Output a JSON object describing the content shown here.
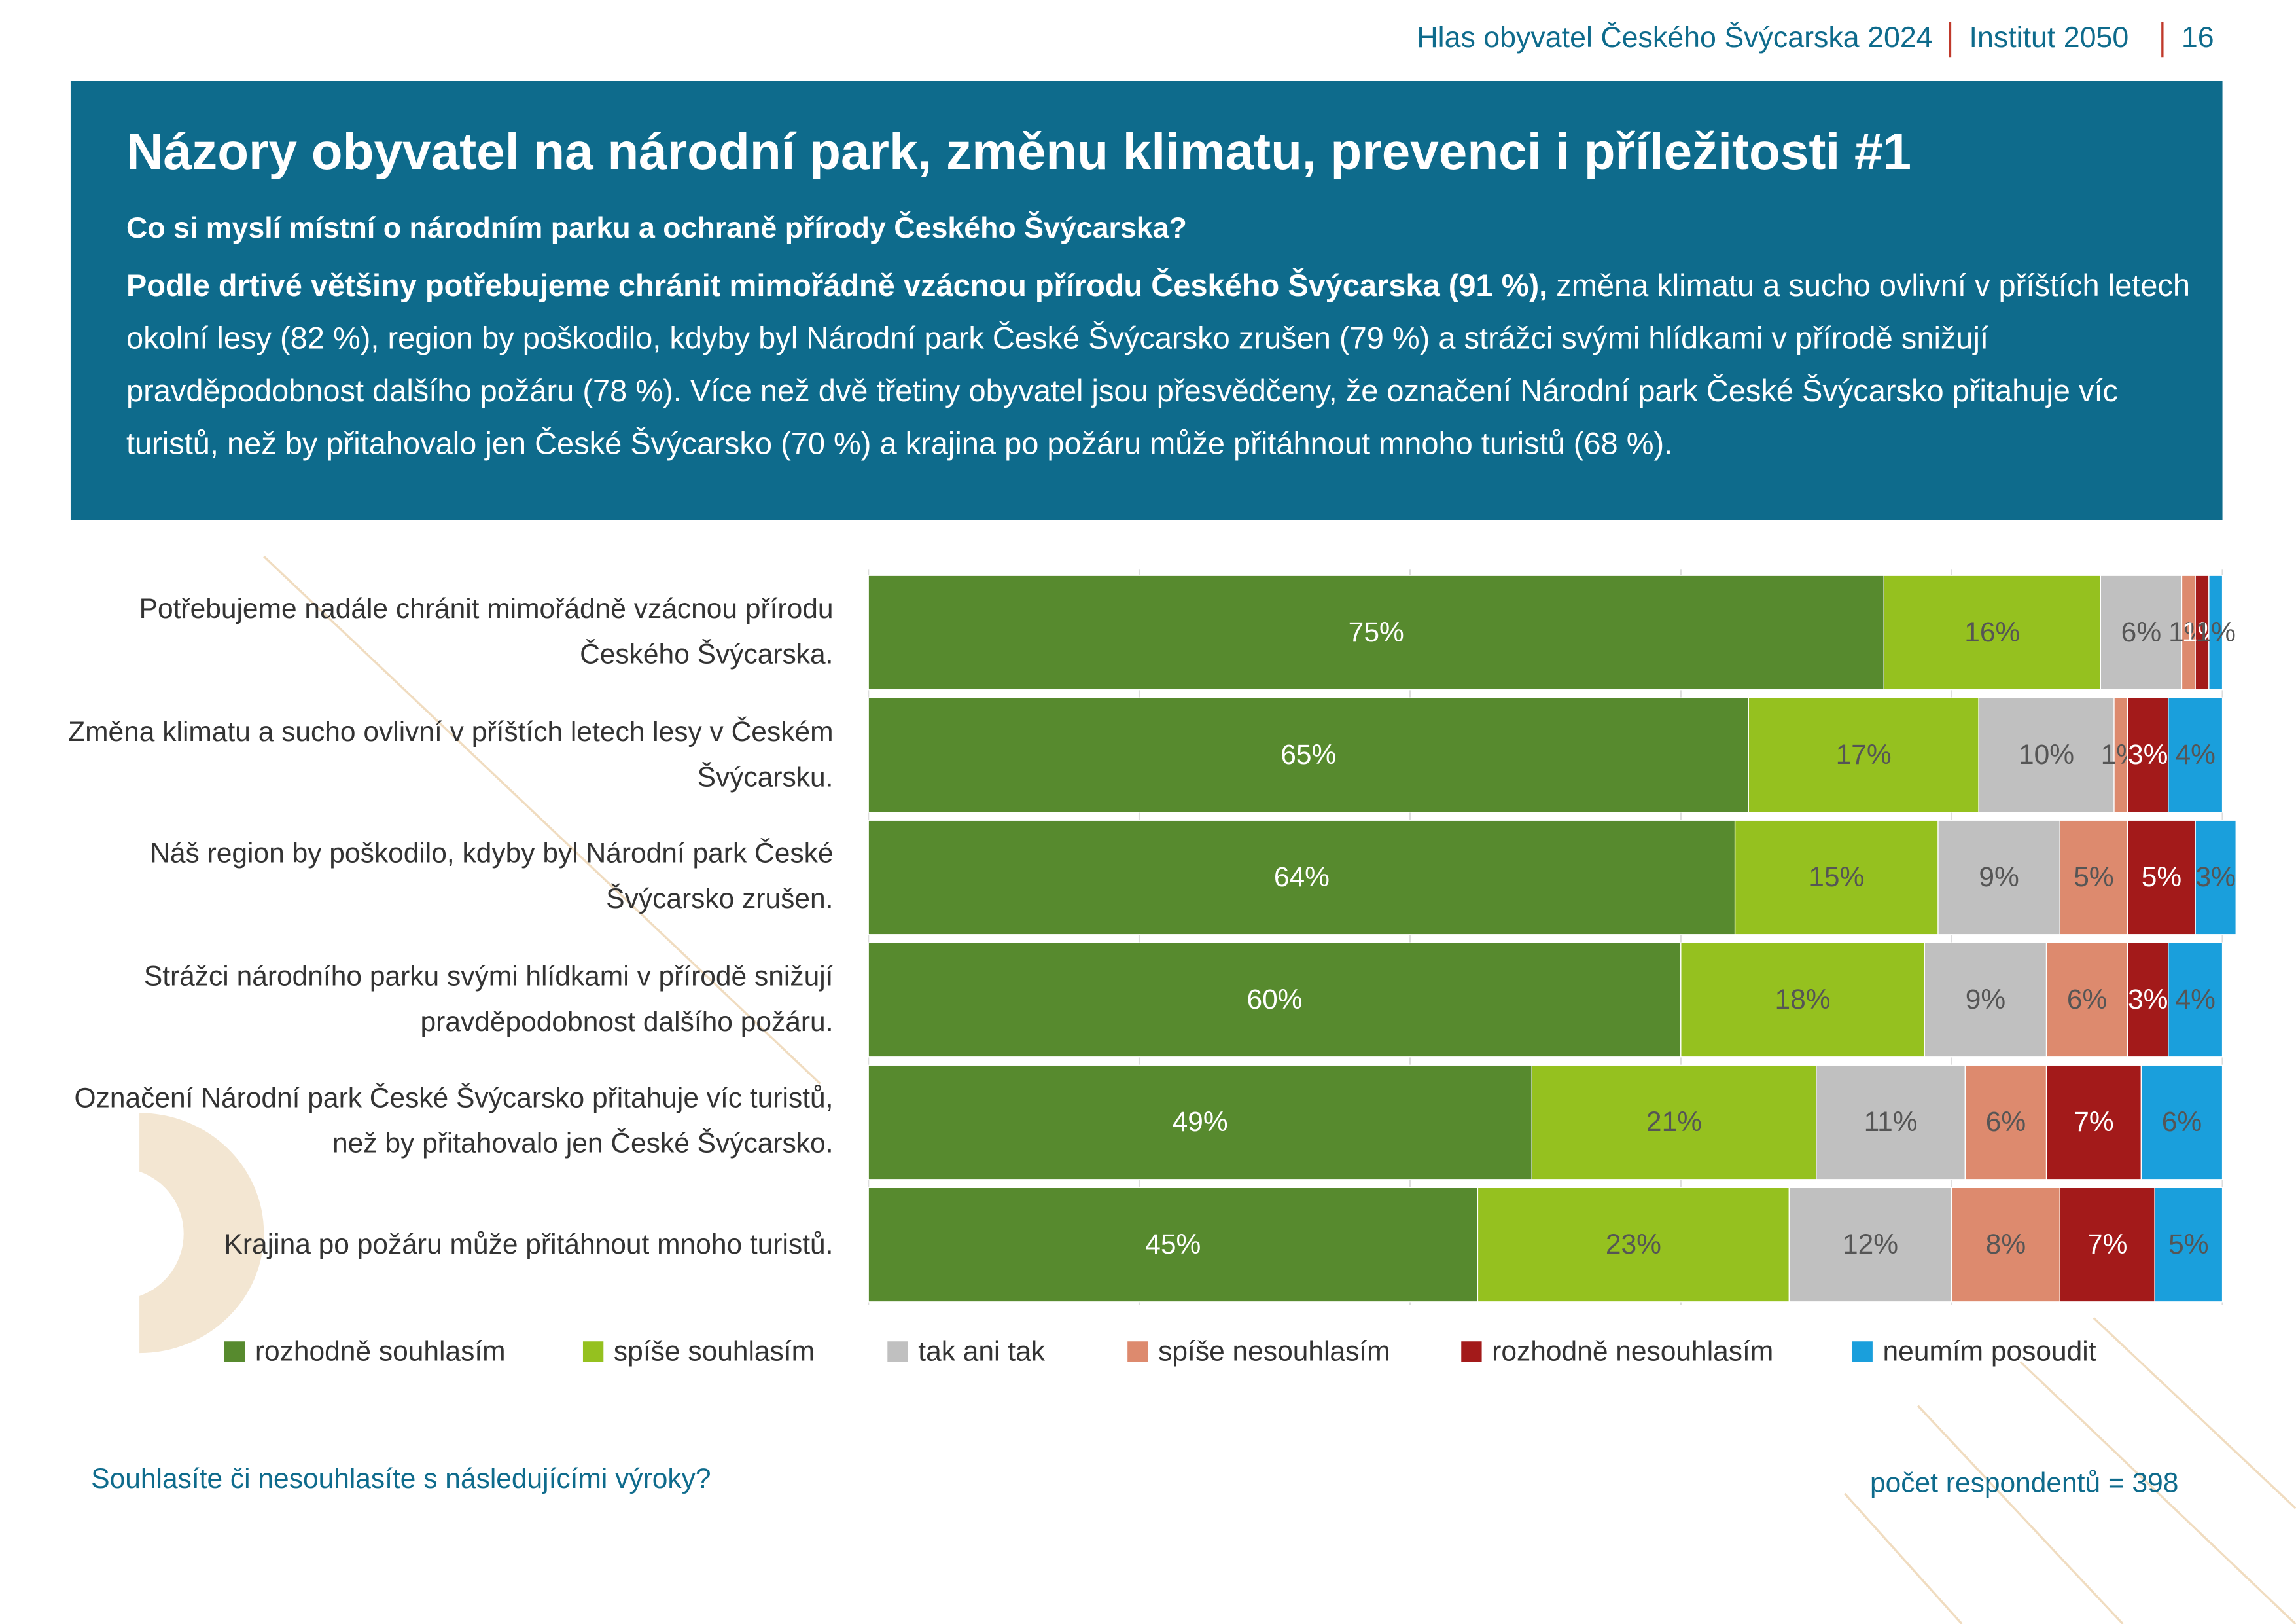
{
  "header": {
    "publication": "Hlas obyvatel Českého Švýcarska 2024",
    "organization": "Institut 2050",
    "page": "16",
    "title": "Názory obyvatel na národní park, změnu klimatu, prevenci i příležitosti #1",
    "subtitle": "Co si myslí místní o národním parku a ochraně přírody Českého Švýcarska?",
    "lead_bold": "Podle drtivé většiny potřebujeme chránit mimořádně vzácnou přírodu Českého Švýcarska (91 %),",
    "lead_text": " změna klimatu a sucho ovlivní v příštích letech okolní lesy (82 %), region by poškodilo, kdyby byl Národní park České Švýcarsko zrušen (79 %) a strážci svými hlídkami v přírodě snižují pravděpodobnost dalšího požáru (78 %). Více než dvě třetiny obyvatel jsou přesvědčeny, že označení Národní park České Švýcarsko přitahuje víc turistů, než by přitahovalo jen České Švýcarsko (70 %) a krajina po požáru může přitáhnout mnoho turistů (68 %)."
  },
  "chart_data": {
    "type": "stacked-bar-horizontal",
    "categories": [
      "Potřebujeme nadále chránit mimořádně vzácnou přírodu Českého Švýcarska.",
      "Změna klimatu a sucho ovlivní v příštích letech lesy v Českém Švýcarsku.",
      "Náš region by poškodilo, kdyby byl Národní park České Švýcarsko zrušen.",
      "Strážci národního parku svými hlídkami v přírodě snižují pravděpodobnost dalšího požáru.",
      "Označení Národní park České Švýcarsko přitahuje víc turistů, než by přitahovalo jen České Švýcarsko.",
      "Krajina po požáru může přitáhnout mnoho turistů."
    ],
    "series": [
      {
        "name": "rozhodně souhlasím",
        "color": "#578a2e",
        "values": [
          75,
          65,
          64,
          60,
          49,
          45
        ],
        "value_labels": [
          "75%",
          "65%",
          "64%",
          "60%",
          "49%",
          "45%"
        ]
      },
      {
        "name": "spíše souhlasím",
        "color": "#95c11f",
        "values": [
          16,
          17,
          15,
          18,
          21,
          23
        ],
        "value_labels": [
          "16%",
          "17%",
          "15%",
          "18%",
          "21%",
          "23%"
        ]
      },
      {
        "name": "tak ani tak",
        "color": "#c0c0c0",
        "values": [
          6,
          10,
          9,
          9,
          11,
          12
        ],
        "value_labels": [
          "6%",
          "10%",
          "9%",
          "9%",
          "11%",
          "12%"
        ]
      },
      {
        "name": "spíše nesouhlasím",
        "color": "#dd8a6e",
        "values": [
          1,
          1,
          5,
          6,
          6,
          8
        ],
        "value_labels": [
          "1%",
          "1%",
          "5%",
          "6%",
          "6%",
          "8%"
        ]
      },
      {
        "name": "rozhodně nesouhlasím",
        "color": "#a31a1a",
        "values": [
          1,
          3,
          5,
          3,
          7,
          7
        ],
        "value_labels": [
          "1%",
          "3%",
          "5%",
          "3%",
          "7%",
          "7%"
        ]
      },
      {
        "name": "neumím posoudit",
        "color": "#1a9fdc",
        "values": [
          1,
          4,
          3,
          4,
          6,
          5
        ],
        "value_labels": [
          "1%",
          "4%",
          "3%",
          "4%",
          "6%",
          "5%"
        ]
      }
    ],
    "xlim": [
      0,
      100
    ],
    "xticks": [
      0,
      20,
      40,
      60,
      80,
      100
    ],
    "grid": true,
    "question": "Souhlasíte či nesouhlasíte s následujícími výroky?",
    "note": "počet respondentů = 398"
  }
}
